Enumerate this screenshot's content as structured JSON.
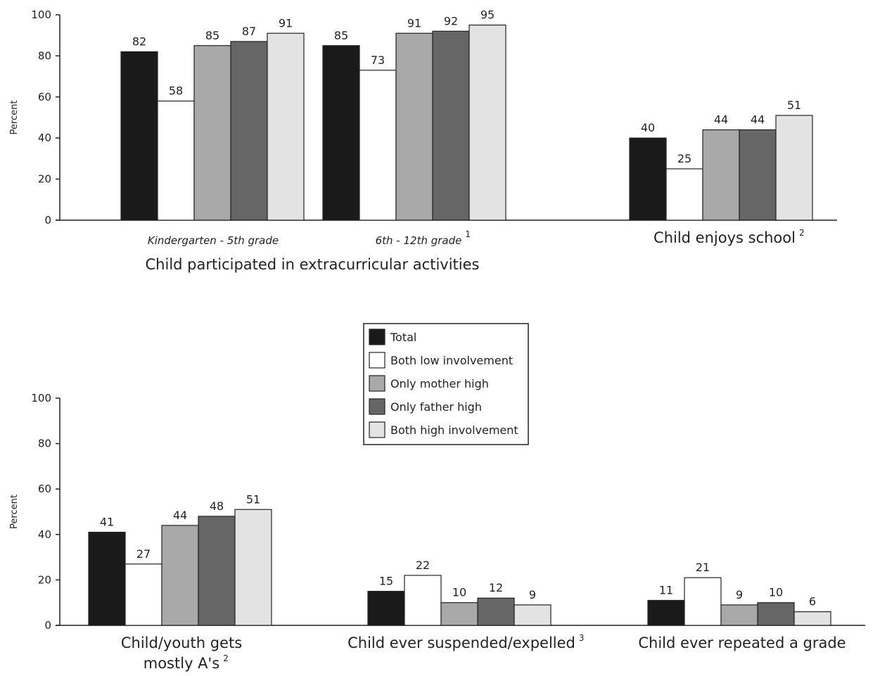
{
  "chart_data": [
    {
      "type": "bar",
      "ylabel": "Percent",
      "ylim": [
        0,
        100
      ],
      "yticks": [
        "0",
        "20",
        "40",
        "60",
        "80",
        "100"
      ],
      "group_title": "Child participated in extracurricular activities",
      "categories": [
        {
          "label": "Kindergarten - 5th grade",
          "note": ""
        },
        {
          "label": "6th - 12th grade",
          "note": "1"
        },
        {
          "label": "Child enjoys school",
          "note": "2"
        }
      ],
      "series": [
        {
          "name": "Total",
          "values": [
            82,
            85,
            40
          ]
        },
        {
          "name": "Both low involvement",
          "values": [
            58,
            73,
            25
          ]
        },
        {
          "name": "Only mother high",
          "values": [
            85,
            91,
            44
          ]
        },
        {
          "name": "Only father high",
          "values": [
            87,
            92,
            44
          ]
        },
        {
          "name": "Both high involvement",
          "values": [
            91,
            95,
            51
          ]
        }
      ]
    },
    {
      "type": "bar",
      "ylabel": "Percent",
      "ylim": [
        0,
        100
      ],
      "yticks": [
        "0",
        "20",
        "40",
        "60",
        "80",
        "100"
      ],
      "categories": [
        {
          "label": "Child/youth gets",
          "label2": "mostly A's",
          "note": "2"
        },
        {
          "label": "Child ever suspended/expelled",
          "note": "3"
        },
        {
          "label": "Child ever repeated a grade",
          "note": ""
        }
      ],
      "series": [
        {
          "name": "Total",
          "values": [
            41,
            15,
            11
          ]
        },
        {
          "name": "Both low involvement",
          "values": [
            27,
            22,
            21
          ]
        },
        {
          "name": "Only mother high",
          "values": [
            44,
            10,
            9
          ]
        },
        {
          "name": "Only father high",
          "values": [
            48,
            12,
            10
          ]
        },
        {
          "name": "Both high involvement",
          "values": [
            51,
            9,
            6
          ]
        }
      ]
    }
  ],
  "legend": {
    "placement": "center",
    "items": [
      {
        "label": "Total",
        "color": "#1a1a1a"
      },
      {
        "label": "Both low involvement",
        "color": "#ffffff"
      },
      {
        "label": "Only mother high",
        "color": "#a9a9a9"
      },
      {
        "label": "Only father high",
        "color": "#666666"
      },
      {
        "label": "Both high involvement",
        "color": "#e3e3e3"
      }
    ]
  },
  "colors": [
    "#1a1a1a",
    "#ffffff",
    "#a9a9a9",
    "#666666",
    "#e3e3e3"
  ]
}
